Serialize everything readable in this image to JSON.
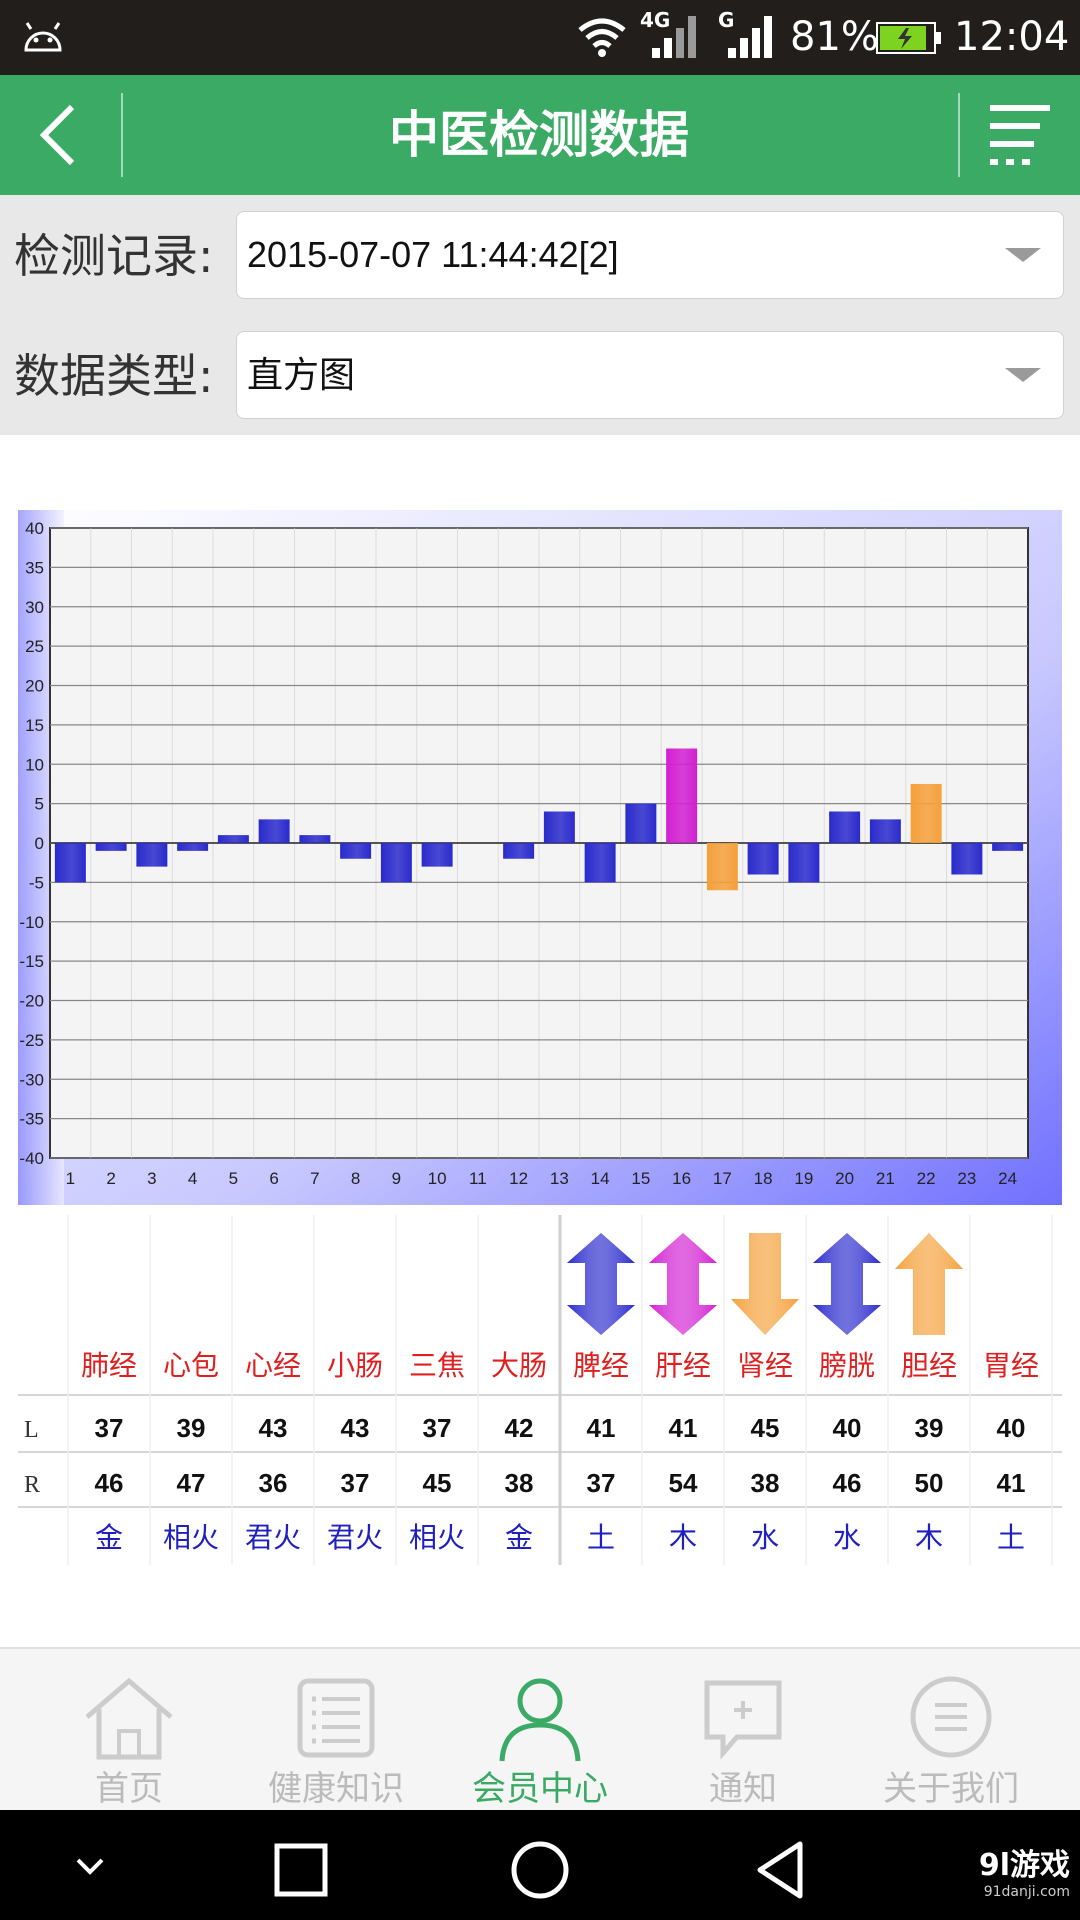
{
  "status_bar": {
    "network_4g": "4G",
    "network_g": "G",
    "battery": "81%",
    "time": "12:04"
  },
  "header": {
    "title": "中医检测数据"
  },
  "filters": {
    "record_label": "检测记录:",
    "record_value": "2015-07-07 11:44:42[2]",
    "type_label": "数据类型:",
    "type_value": "直方图"
  },
  "chart_data": {
    "type": "bar",
    "categories": [
      "1",
      "2",
      "3",
      "4",
      "5",
      "6",
      "7",
      "8",
      "9",
      "10",
      "11",
      "12",
      "13",
      "14",
      "15",
      "16",
      "17",
      "18",
      "19",
      "20",
      "21",
      "22",
      "23",
      "24"
    ],
    "values": [
      -5,
      -1,
      -3,
      -1,
      1,
      3,
      1,
      -2,
      -5,
      -3,
      0,
      -2,
      4,
      -5,
      5,
      12,
      -6,
      -4,
      -5,
      4,
      3,
      7.5,
      -4,
      -1
    ],
    "bar_colors": [
      "#2a2acd",
      "#2a2acd",
      "#2a2acd",
      "#2a2acd",
      "#2a2acd",
      "#2a2acd",
      "#2a2acd",
      "#2a2acd",
      "#2a2acd",
      "#2a2acd",
      "#2a2acd",
      "#2a2acd",
      "#2a2acd",
      "#2a2acd",
      "#2a2acd",
      "#d21fd2",
      "#f5a03a",
      "#2a2acd",
      "#2a2acd",
      "#2a2acd",
      "#2a2acd",
      "#f5a03a",
      "#2a2acd",
      "#2a2acd"
    ],
    "yticks": [
      "40",
      "35",
      "30",
      "25",
      "20",
      "15",
      "10",
      "5",
      "0",
      "-5",
      "-10",
      "-15",
      "-20",
      "-25",
      "-30",
      "-35",
      "-40"
    ],
    "ylim": [
      -40,
      40
    ],
    "grid": true
  },
  "meridians": {
    "row_labels": {
      "L": "L",
      "R": "R"
    },
    "columns": [
      {
        "name": "肺经",
        "L": "37",
        "R": "46",
        "element": "金",
        "arrow": null
      },
      {
        "name": "心包",
        "L": "39",
        "R": "47",
        "element": "相火",
        "arrow": null
      },
      {
        "name": "心经",
        "L": "43",
        "R": "36",
        "element": "君火",
        "arrow": null
      },
      {
        "name": "小肠",
        "L": "43",
        "R": "37",
        "element": "君火",
        "arrow": null
      },
      {
        "name": "三焦",
        "L": "37",
        "R": "45",
        "element": "相火",
        "arrow": null
      },
      {
        "name": "大肠",
        "L": "42",
        "R": "38",
        "element": "金",
        "arrow": null
      },
      {
        "name": "脾经",
        "L": "41",
        "R": "37",
        "element": "土",
        "arrow": "both"
      },
      {
        "name": "肝经",
        "L": "41",
        "R": "54",
        "element": "木",
        "arrow": "both"
      },
      {
        "name": "肾经",
        "L": "45",
        "R": "38",
        "element": "水",
        "arrow": "down"
      },
      {
        "name": "膀胱",
        "L": "40",
        "R": "46",
        "element": "水",
        "arrow": "both"
      },
      {
        "name": "胆经",
        "L": "39",
        "R": "50",
        "element": "木",
        "arrow": "up"
      },
      {
        "name": "胃经",
        "L": "40",
        "R": "41",
        "element": "土",
        "arrow": null
      }
    ],
    "arrow_colors": {
      "肝经": "#d21fd2",
      "脾经": "#2a2acd",
      "膀胱": "#2a2acd",
      "肾经": "#f5a03a",
      "胆经": "#f5a03a"
    },
    "name_color": "#e02020",
    "element_color": "#2020c0"
  },
  "bottom_nav": {
    "items": [
      {
        "label": "首页",
        "icon": "home-icon"
      },
      {
        "label": "健康知识",
        "icon": "list-icon"
      },
      {
        "label": "会员中心",
        "icon": "user-icon"
      },
      {
        "label": "通知",
        "icon": "message-icon"
      },
      {
        "label": "关于我们",
        "icon": "menu-circle-icon"
      }
    ],
    "active_index": 2
  },
  "watermark": {
    "brand": "9l游戏",
    "site": "91danji.com"
  },
  "colors": {
    "primary": "#3aaa65",
    "status_bar": "#221e1b"
  }
}
